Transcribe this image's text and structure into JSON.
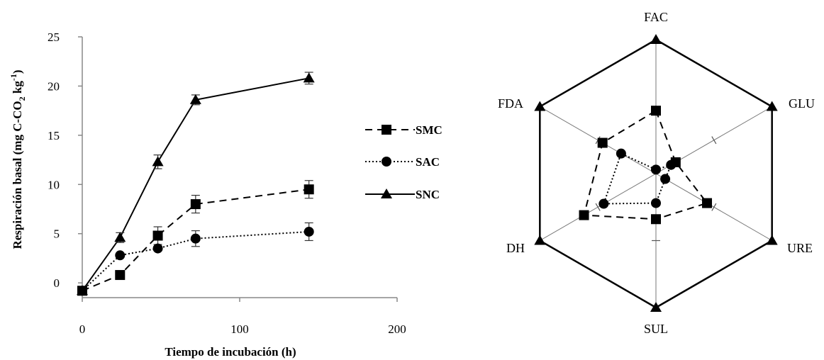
{
  "chart_data": [
    {
      "type": "line",
      "xlabel": "Tiempo de incubación (h)",
      "ylabel": "Respiración basal (mg C-CO",
      "ylabel_sub": "2",
      "ylabel_mid": " kg",
      "ylabel_sup": "-1",
      "ylabel_end": ")",
      "xlim": [
        0,
        200
      ],
      "ylim": [
        0,
        25
      ],
      "xticks": [
        "0",
        "100",
        "200"
      ],
      "yticks": [
        "0",
        "5",
        "10",
        "15",
        "20",
        "25"
      ],
      "grid": false,
      "legend_position": "right",
      "series": [
        {
          "name": "SMC",
          "marker": "square",
          "dash": "dashed",
          "x": [
            0,
            24,
            48,
            72,
            144
          ],
          "y": [
            -0.8,
            0.8,
            4.8,
            8.0,
            9.5
          ],
          "err": [
            0,
            0,
            0.9,
            0.9,
            0.9
          ]
        },
        {
          "name": "SAC",
          "marker": "circle",
          "dash": "dotted",
          "x": [
            0,
            24,
            48,
            72,
            144
          ],
          "y": [
            -0.8,
            2.8,
            3.5,
            4.5,
            5.2
          ],
          "err": [
            0,
            0,
            0,
            0.8,
            0.9
          ]
        },
        {
          "name": "SNC",
          "marker": "triangle",
          "dash": "solid",
          "x": [
            0,
            24,
            48,
            72,
            144
          ],
          "y": [
            -0.8,
            4.6,
            12.3,
            18.6,
            20.8
          ],
          "err": [
            0,
            0.5,
            0.7,
            0.5,
            0.6
          ]
        }
      ]
    },
    {
      "type": "radar",
      "axes": [
        "FAC",
        "GLU",
        "URE",
        "SUL",
        "DH",
        "FDA"
      ],
      "rmax": 1.0,
      "series": [
        {
          "name": "SNC",
          "marker": "triangle",
          "dash": "solid",
          "values": [
            1,
            1,
            1,
            1,
            1,
            1
          ]
        },
        {
          "name": "SMC",
          "marker": "square",
          "dash": "dashed",
          "values": [
            0.47,
            0.17,
            0.44,
            0.34,
            0.62,
            0.46
          ]
        },
        {
          "name": "SAC",
          "marker": "circle",
          "dash": "dotted",
          "values": [
            0.03,
            0.13,
            0.08,
            0.22,
            0.45,
            0.3
          ]
        }
      ]
    }
  ]
}
